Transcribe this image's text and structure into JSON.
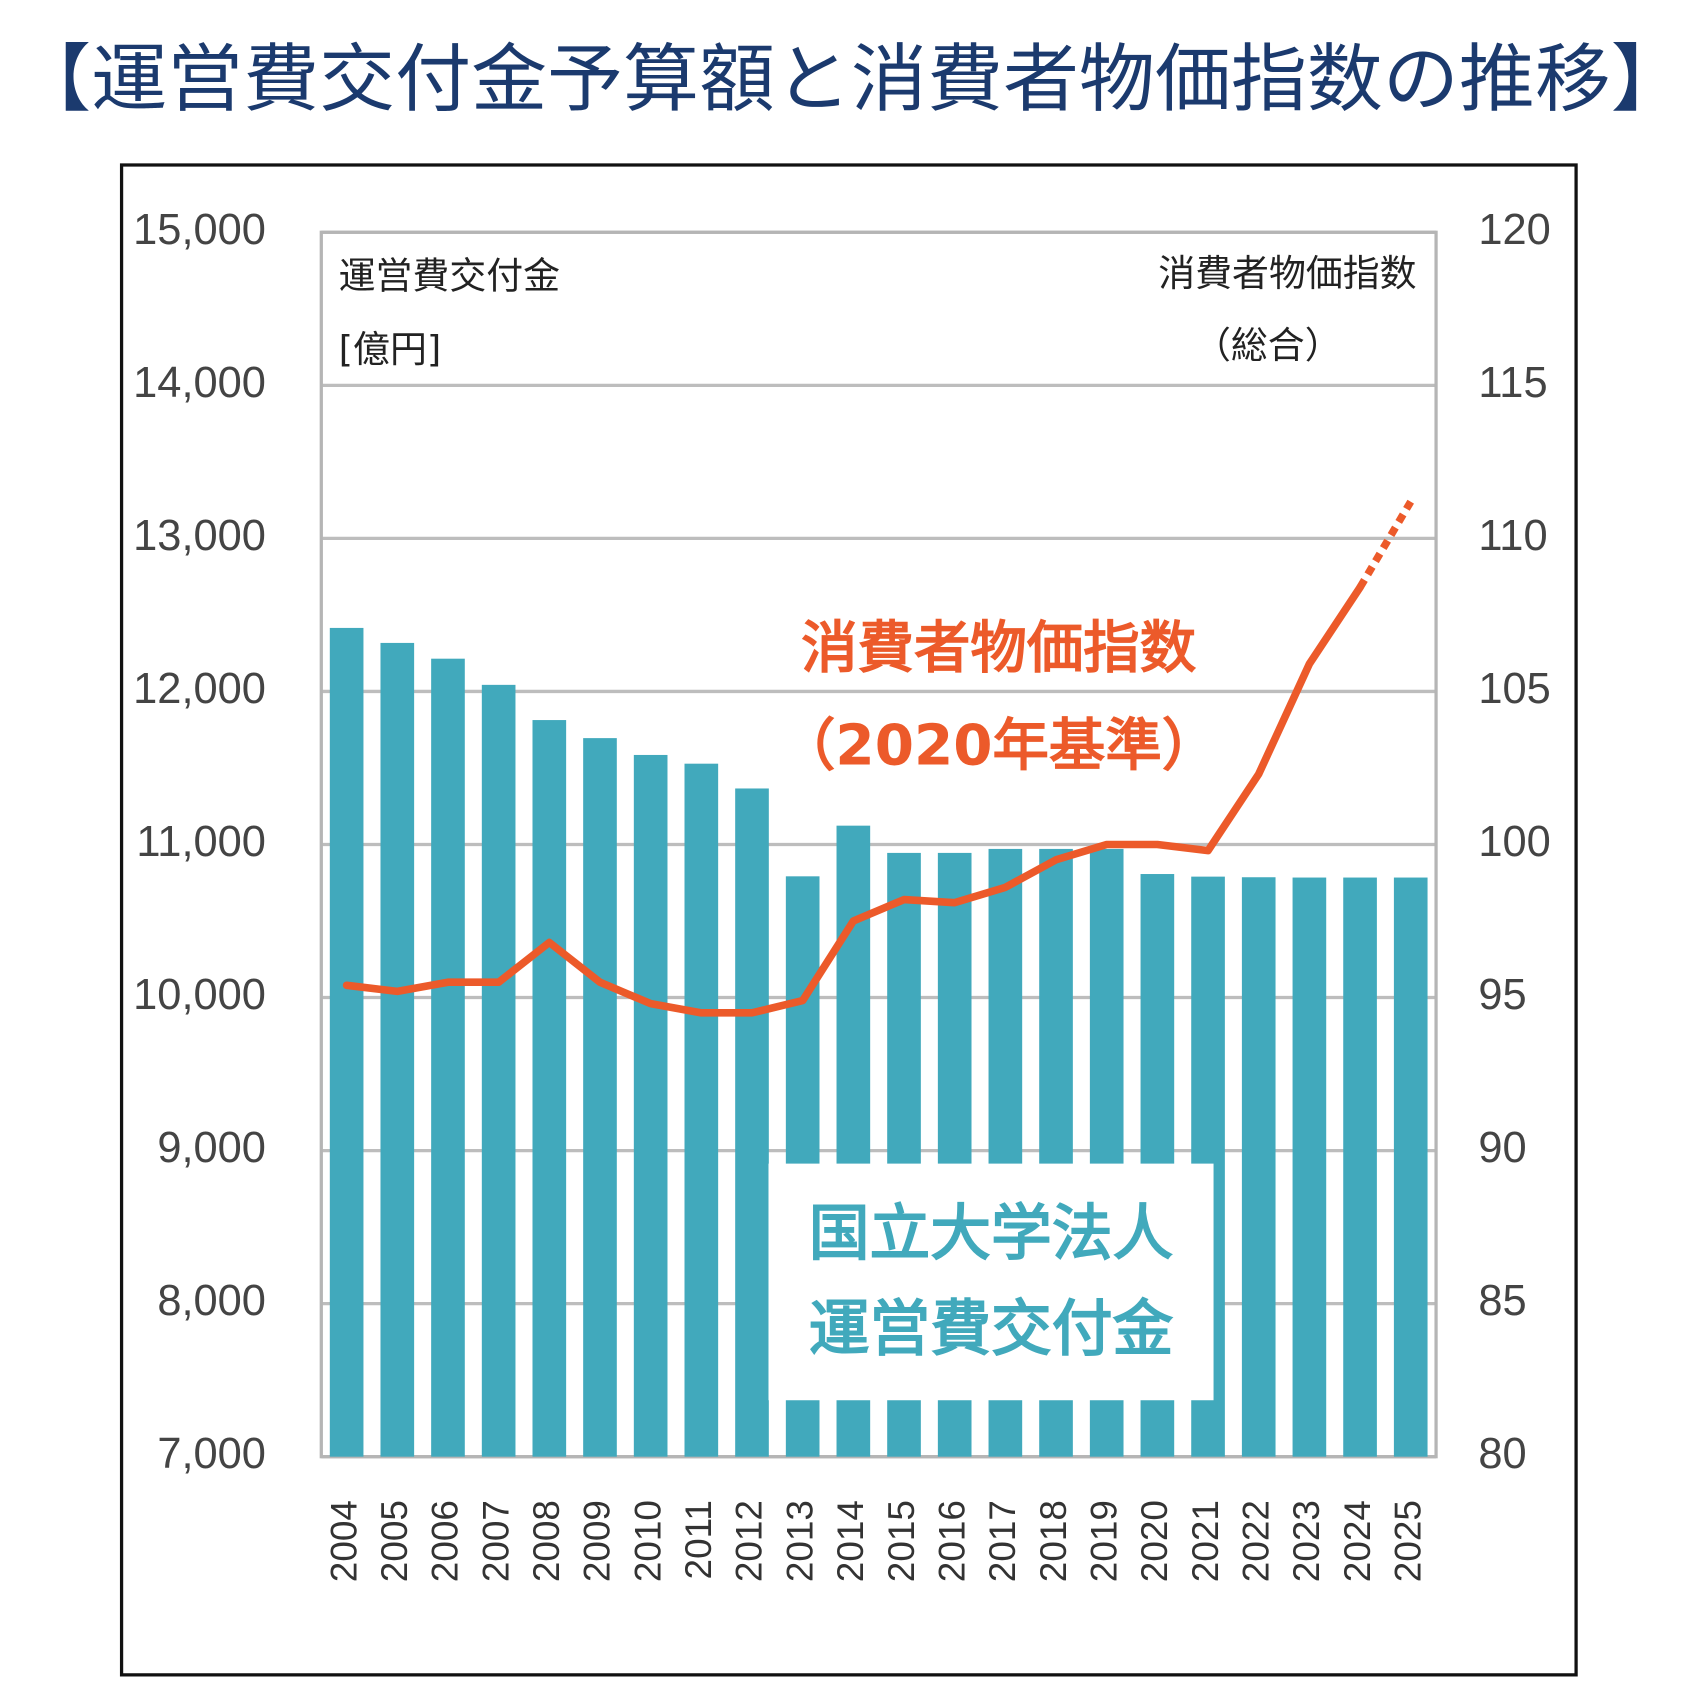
{
  "chart_data": {
    "type": "bar_line",
    "title": "【運営費交付金予算額と消費者物価指数の推移】",
    "y_label": [
      "運営費交付金",
      "[億円]"
    ],
    "y2_label": [
      "消費者物価指数",
      "（総合）"
    ],
    "categories": [
      "2004",
      "2005",
      "2006",
      "2007",
      "2008",
      "2009",
      "2010",
      "2011",
      "2012",
      "2013",
      "2014",
      "2015",
      "2016",
      "2017",
      "2018",
      "2019",
      "2020",
      "2021",
      "2022",
      "2023",
      "2024",
      "2025"
    ],
    "series": [
      {
        "name": [
          "国立大学法人",
          "運営費交付金"
        ],
        "type": "bar",
        "color": "#41a9bc",
        "values": [
          12415,
          12317,
          12214,
          12043,
          11813,
          11695,
          11585,
          11528,
          11366,
          10792,
          11123,
          10945,
          10945,
          10971,
          10971,
          10971,
          10807,
          10790,
          10786,
          10784,
          10784,
          10784
        ]
      },
      {
        "name": [
          "消費者物価指数",
          "（2020年基準）"
        ],
        "type": "line",
        "axis": "y2",
        "color": "#ec5a2a",
        "dashed_last_segment": true,
        "values": [
          95.4,
          95.2,
          95.5,
          95.5,
          96.8,
          95.5,
          94.8,
          94.5,
          94.5,
          94.9,
          97.5,
          98.2,
          98.1,
          98.6,
          99.5,
          100.0,
          100.0,
          99.8,
          102.3,
          105.9,
          108.4,
          111.2
        ]
      }
    ],
    "ylim": [
      7000,
      15000
    ],
    "yticks": [
      {
        "value": 7000,
        "label": "7,000"
      },
      {
        "value": 8000,
        "label": "8,000"
      },
      {
        "value": 9000,
        "label": "9,000"
      },
      {
        "value": 10000,
        "label": "10,000"
      },
      {
        "value": 11000,
        "label": "11,000"
      },
      {
        "value": 12000,
        "label": "12,000"
      },
      {
        "value": 13000,
        "label": "13,000"
      },
      {
        "value": 14000,
        "label": "14,000"
      },
      {
        "value": 15000,
        "label": "15,000"
      }
    ],
    "y2lim": [
      80,
      120
    ],
    "y2ticks": [
      80,
      85,
      90,
      95,
      100,
      105,
      110,
      115,
      120
    ],
    "grid": true
  }
}
